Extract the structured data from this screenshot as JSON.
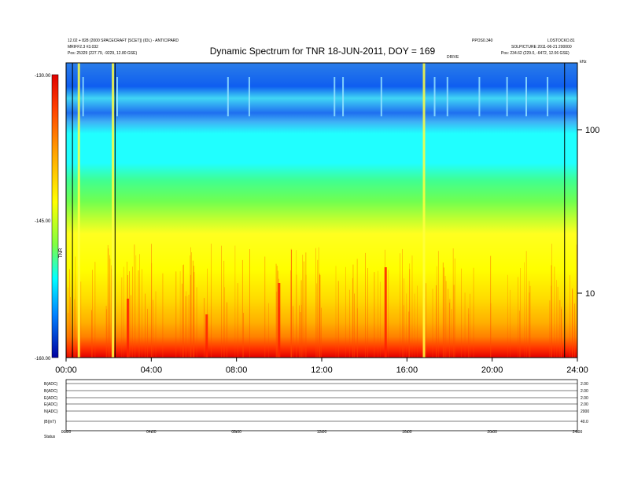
{
  "chart_data": {
    "type": "heatmap",
    "title": "Dynamic Spectrum for TNR 18-JUN-2011, DOY = 169",
    "header_left": [
      "12.02 + 828 (2000 SPACECRAFT [SCET]) (IDL) - ANTICIPARD",
      "MRIFF2.3 #3.032",
      "Pos: 25329 (227.79, -9229, 12.80 GSE)"
    ],
    "header_right": [
      "PPOS0.340",
      "SOLPICTURE 2011-06-21 200000",
      "Pos: 234.62 (229.0, -6472, 12.06 GSE)"
    ],
    "top_right_labels": [
      "LOSTOCKO.81",
      "kHz",
      "DRIVE"
    ],
    "colorbar": {
      "label": "TNR",
      "ticks": [
        "-130.00",
        "-145.00",
        "-160.00"
      ],
      "range": [
        -160,
        -130
      ]
    },
    "x_axis": {
      "ticks": [
        "00:00",
        "04:00",
        "08:00",
        "12:00",
        "16:00",
        "20:00",
        "24:00"
      ],
      "range_hours": [
        0,
        24
      ]
    },
    "y_axis": {
      "unit": "kHz",
      "scale": "log",
      "ticks": [
        "100",
        "10"
      ]
    },
    "marker_lines_hours": [
      0.3,
      2.3,
      23.4
    ],
    "bursts_hours": [
      0.6,
      2.2,
      16.8,
      15.0,
      10.0,
      2.9,
      6.6
    ],
    "data_gaps_hours": [
      0.8,
      2.4,
      7.6,
      8.6,
      12.6,
      13.0,
      14.8,
      17.3,
      17.9,
      19.4,
      20.7,
      21.6,
      22.6
    ],
    "lower_panel": {
      "rows": [
        {
          "left": "B(ADC)",
          "right": "2.00"
        },
        {
          "left": "B(ADC)",
          "right": "2.00"
        },
        {
          "left": "E(ADC)",
          "right": "2.00"
        },
        {
          "left": "E(ADC)",
          "right": "2.00"
        },
        {
          "left": "N(ADC)",
          "right": "2000"
        },
        {
          "left": "|B|(nT)",
          "right": "40.0"
        }
      ],
      "status_label": "Status",
      "ticks": [
        "00:00",
        "04:00",
        "08:00",
        "12:00",
        "16:00",
        "20:00",
        "24:00"
      ]
    }
  }
}
